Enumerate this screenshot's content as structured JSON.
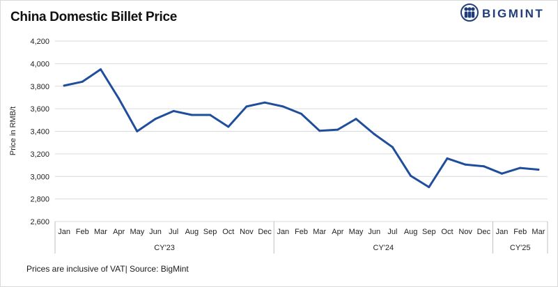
{
  "chart_data": {
    "type": "line",
    "title": "China Domestic Billet Price",
    "ylabel": "Price in RMB/t",
    "xlabel": "",
    "ylim": [
      2600,
      4200
    ],
    "yticks": [
      2600,
      2800,
      3000,
      3200,
      3400,
      3600,
      3800,
      4000,
      4200
    ],
    "ytick_labels": [
      "2,600",
      "2,800",
      "3,000",
      "3,200",
      "3,400",
      "3,600",
      "3,800",
      "4,000",
      "4,200"
    ],
    "grid": true,
    "legend": "none",
    "categories": [
      "Jan",
      "Feb",
      "Mar",
      "Apr",
      "May",
      "Jun",
      "Jul",
      "Aug",
      "Sep",
      "Oct",
      "Nov",
      "Dec",
      "Jan",
      "Feb",
      "Mar",
      "Apr",
      "May",
      "Jun",
      "Jul",
      "Aug",
      "Sep",
      "Oct",
      "Nov",
      "Dec",
      "Jan",
      "Feb",
      "Mar"
    ],
    "groups": [
      {
        "label": "CY'23",
        "count": 12
      },
      {
        "label": "CY'24",
        "count": 12
      },
      {
        "label": "CY'25",
        "count": 3
      }
    ],
    "series": [
      {
        "color": "#1f4e9c",
        "values": [
          3805,
          3840,
          3950,
          3690,
          3400,
          3510,
          3580,
          3545,
          3545,
          3440,
          3620,
          3655,
          3620,
          3555,
          3405,
          3415,
          3510,
          3375,
          3260,
          3005,
          2905,
          3160,
          3105,
          3090,
          3025,
          3075,
          3060
        ]
      }
    ]
  },
  "logo": {
    "text": "BIGMINT",
    "color": "#1f3d7a",
    "icon": "people-circle-icon"
  },
  "footnote": "Prices are inclusive of VAT| Source: BigMint"
}
